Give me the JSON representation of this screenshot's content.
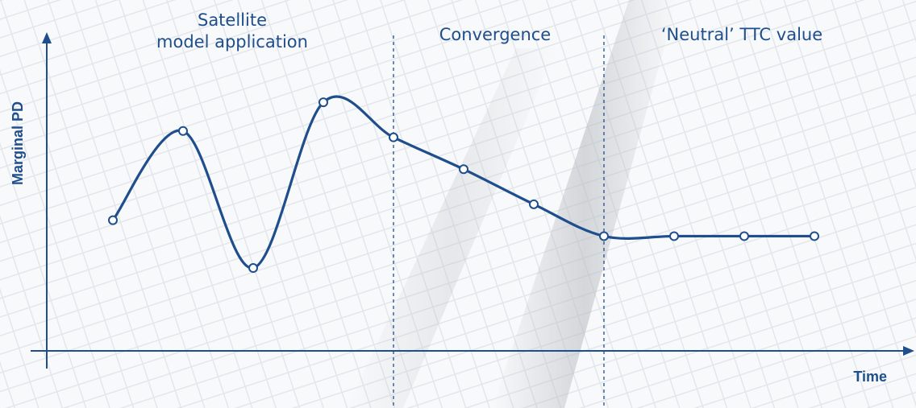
{
  "colors": {
    "accent": "#1f4e8c",
    "background": "#eef0f3",
    "marker_fill": "#ffffff",
    "text": "#1f4e8c"
  },
  "chart_data": {
    "type": "line",
    "title": "",
    "xlabel": "Time",
    "ylabel": "Marginal PD",
    "grid": false,
    "legend": "none",
    "phases": [
      {
        "label_lines": [
          "Satellite",
          "model application"
        ]
      },
      {
        "label_lines": [
          "Convergence"
        ]
      },
      {
        "label_lines": [
          "‘Neutral’ TTC value"
        ]
      }
    ],
    "phase_boundaries_x": [
      4,
      7
    ],
    "series": [
      {
        "x": [
          0,
          1,
          2,
          3,
          4,
          5,
          6,
          7,
          8,
          9,
          10
        ],
        "values": [
          0.41,
          0.69,
          0.26,
          0.78,
          0.67,
          0.57,
          0.46,
          0.36,
          0.36,
          0.36,
          0.36
        ]
      }
    ],
    "xlim": [
      -1,
      11
    ],
    "ylim": [
      0,
      1
    ]
  }
}
